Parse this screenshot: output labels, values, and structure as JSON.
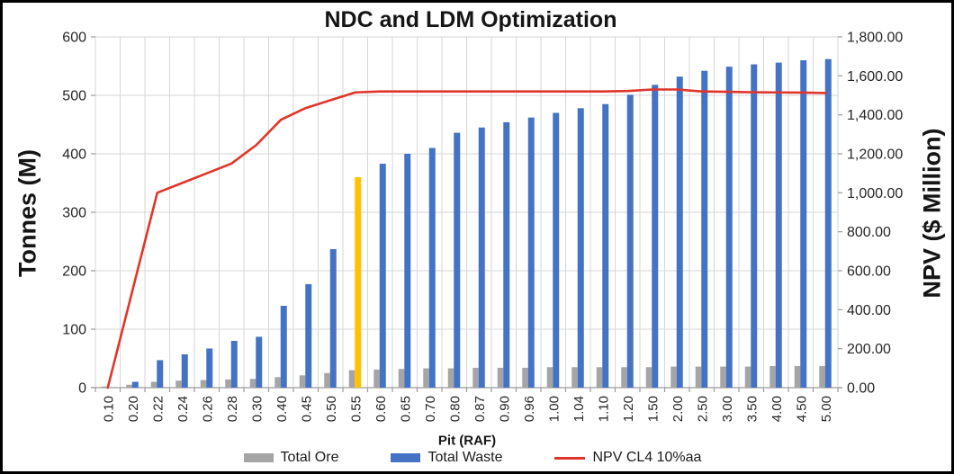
{
  "chart_data": {
    "type": "combo_bar_line",
    "title": "NDC and LDM Optimization",
    "categories": [
      "0.10",
      "0.20",
      "0.22",
      "0.24",
      "0.26",
      "0.28",
      "0.30",
      "0.40",
      "0.45",
      "0.50",
      "0.55",
      "0.60",
      "0.65",
      "0.70",
      "0.80",
      "0.87",
      "0.90",
      "0.96",
      "1.00",
      "1.04",
      "1.10",
      "1.20",
      "1.50",
      "2.00",
      "2.50",
      "3.00",
      "3.50",
      "4.00",
      "4.50",
      "5.00"
    ],
    "series": [
      {
        "name": "Total Ore",
        "type": "bar",
        "axis": "left",
        "color": "#a5a5a5",
        "values": [
          2,
          5,
          10,
          12,
          13,
          14,
          15,
          18,
          21,
          25,
          30,
          31,
          32,
          33,
          33,
          34,
          34,
          34,
          35,
          35,
          35,
          35,
          35,
          36,
          36,
          36,
          36,
          37,
          37,
          37
        ]
      },
      {
        "name": "Total Waste",
        "type": "bar",
        "axis": "left",
        "color": "#4472c4",
        "highlight_index": 10,
        "highlight_color": "#ffc000",
        "highlight_category": "0.55",
        "values": [
          0,
          10,
          47,
          57,
          67,
          80,
          87,
          140,
          177,
          237,
          360,
          383,
          400,
          410,
          436,
          445,
          454,
          462,
          470,
          478,
          485,
          501,
          518,
          532,
          542,
          549,
          553,
          556,
          560,
          562
        ]
      },
      {
        "name": "NPV CL4 10%aa",
        "type": "line",
        "axis": "right",
        "color": "#e0352b",
        "values": [
          0,
          500,
          1000,
          1050,
          1100,
          1150,
          1245,
          1375,
          1435,
          1475,
          1515,
          1520,
          1520,
          1520,
          1520,
          1520,
          1520,
          1520,
          1520,
          1520,
          1520,
          1522,
          1530,
          1530,
          1520,
          1518,
          1516,
          1515,
          1514,
          1512
        ]
      }
    ],
    "left_axis": {
      "title": "Tonnes (M)",
      "min": 0,
      "max": 600,
      "step": 100,
      "tick_labels": [
        "0",
        "100",
        "200",
        "300",
        "400",
        "500",
        "600"
      ]
    },
    "right_axis": {
      "title": "NPV ($ Million)",
      "min": 0,
      "max": 1800,
      "step": 200,
      "tick_labels": [
        "0.00",
        "200.00",
        "400.00",
        "600.00",
        "800.00",
        "1,000.00",
        "1,200.00",
        "1,400.00",
        "1,600.00",
        "1,800.00"
      ]
    },
    "x_axis": {
      "title": "Pit  (RAF)"
    },
    "grid": {
      "horizontal": true,
      "vertical": true
    },
    "legend_position": "bottom",
    "style": {
      "gridline_color": "#d6d6d6",
      "axis_line_color": "#9b9b9b",
      "tick_label_color": "#262626",
      "frame_color": "#000000",
      "background": "#ffffff"
    }
  }
}
